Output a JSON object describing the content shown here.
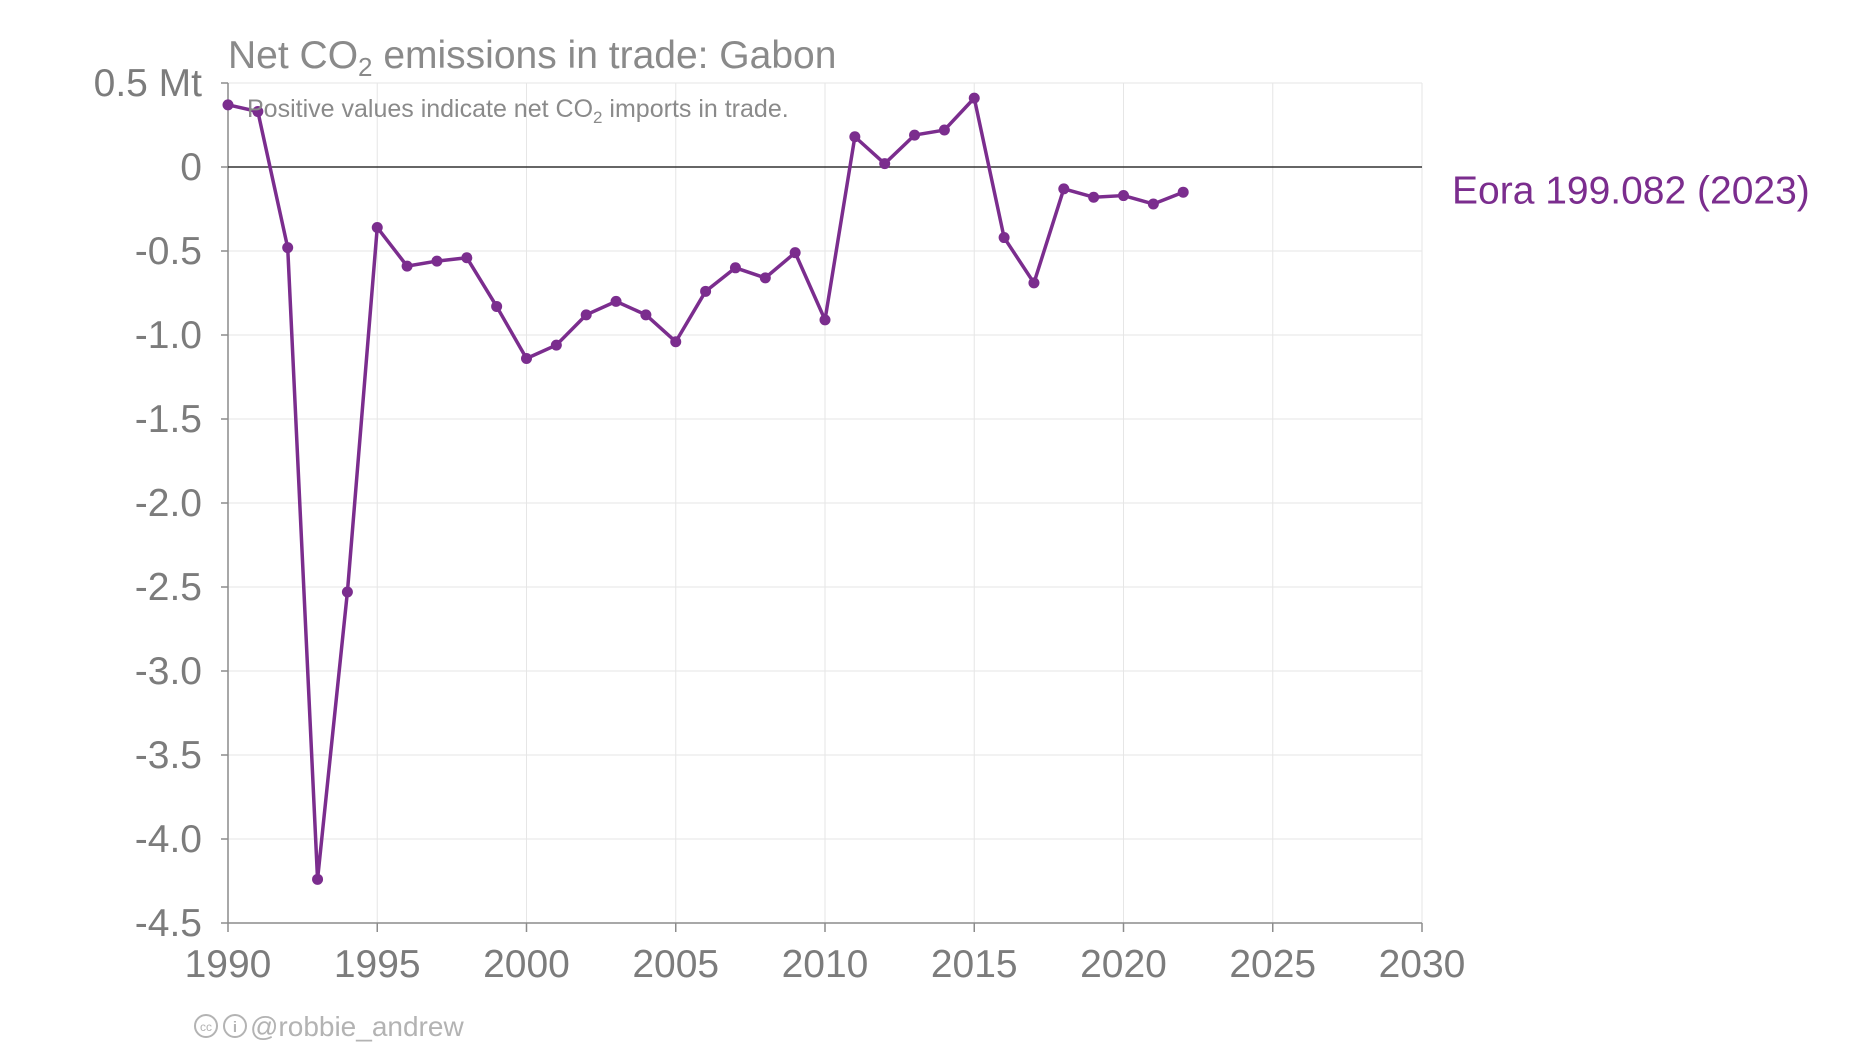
{
  "chart_data": {
    "type": "line",
    "title_main": "Net CO",
    "title_sub": "2",
    "title_rest": " emissions in trade: Gabon",
    "subtitle_main": "Positive values indicate net CO",
    "subtitle_sub": "2",
    "subtitle_rest": " imports in trade.",
    "y_unit_label": "0.5 Mt",
    "xlim": [
      1990,
      2030
    ],
    "ylim": [
      -4.5,
      0.5
    ],
    "x_ticks": [
      1990,
      1995,
      2000,
      2005,
      2010,
      2015,
      2020,
      2025,
      2030
    ],
    "x_tick_labels": [
      "1990",
      "1995",
      "2000",
      "2005",
      "2010",
      "2015",
      "2020",
      "2025",
      "2030"
    ],
    "y_ticks": [
      0.5,
      0,
      -0.5,
      -1.0,
      -1.5,
      -2.0,
      -2.5,
      -3.0,
      -3.5,
      -4.0,
      -4.5
    ],
    "y_tick_labels": [
      "0.5 Mt",
      "0",
      "-0.5",
      "-1.0",
      "-1.5",
      "-2.0",
      "-2.5",
      "-3.0",
      "-3.5",
      "-4.0",
      "-4.5"
    ],
    "grid": true,
    "series": [
      {
        "name": "Eora 199.082 (2023)",
        "color": "#7b2d8e",
        "x": [
          1990,
          1991,
          1992,
          1993,
          1994,
          1995,
          1996,
          1997,
          1998,
          1999,
          2000,
          2001,
          2002,
          2003,
          2004,
          2005,
          2006,
          2007,
          2008,
          2009,
          2010,
          2011,
          2012,
          2013,
          2014,
          2015,
          2016,
          2017,
          2018,
          2019,
          2020,
          2021,
          2022
        ],
        "values": [
          0.37,
          0.33,
          -0.48,
          -4.24,
          -2.53,
          -0.36,
          -0.59,
          -0.56,
          -0.54,
          -0.83,
          -1.14,
          -1.06,
          -0.88,
          -0.8,
          -0.88,
          -1.04,
          -0.74,
          -0.6,
          -0.66,
          -0.51,
          -0.91,
          0.18,
          0.02,
          0.19,
          0.22,
          0.41,
          -0.42,
          -0.69,
          -0.13,
          -0.18,
          -0.17,
          -0.22,
          -0.15
        ]
      }
    ]
  },
  "credit": {
    "cc_icon_text": "cc",
    "by_icon_text": "i",
    "handle": "@robbie_andrew"
  }
}
